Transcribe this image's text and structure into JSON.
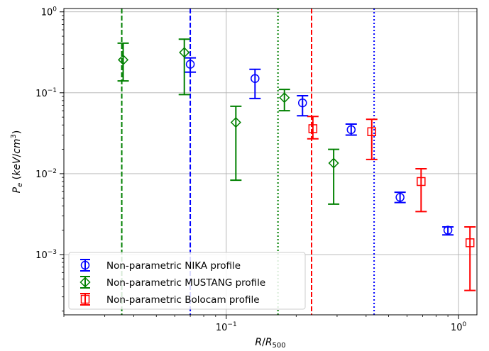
{
  "chart_data": {
    "type": "scatter",
    "title": "",
    "xlabel": "R/R500",
    "ylabel": "Pe (keV/cm3)",
    "xscale": "log",
    "yscale": "log",
    "xlim": [
      0.02,
      1.2
    ],
    "ylim": [
      0.00018,
      1.1
    ],
    "grid": true,
    "legend_position": "lower-left",
    "x_tick_labels": [
      {
        "value": 0.1,
        "base": "10",
        "exp": "−1"
      },
      {
        "value": 1,
        "base": "10",
        "exp": "0"
      }
    ],
    "y_tick_labels": [
      {
        "value": 0.001,
        "base": "10",
        "exp": "−3"
      },
      {
        "value": 0.01,
        "base": "10",
        "exp": "−2"
      },
      {
        "value": 0.1,
        "base": "10",
        "exp": "−1"
      },
      {
        "value": 1,
        "base": "10",
        "exp": "0"
      }
    ],
    "series": [
      {
        "name": "Non-parametric NIKA profile",
        "color": "#0000ff",
        "marker": "circle",
        "points": [
          {
            "x": 0.07,
            "y": 0.225,
            "ylo": 0.18,
            "yhi": 0.27
          },
          {
            "x": 0.133,
            "y": 0.15,
            "ylo": 0.085,
            "yhi": 0.195
          },
          {
            "x": 0.213,
            "y": 0.075,
            "ylo": 0.052,
            "yhi": 0.092
          },
          {
            "x": 0.345,
            "y": 0.035,
            "ylo": 0.03,
            "yhi": 0.041
          },
          {
            "x": 0.56,
            "y": 0.0051,
            "ylo": 0.0044,
            "yhi": 0.0059
          },
          {
            "x": 0.9,
            "y": 0.002,
            "ylo": 0.00175,
            "yhi": 0.0022
          }
        ]
      },
      {
        "name": "Non-parametric MUSTANG profile",
        "color": "#008000",
        "marker": "diamond",
        "points": [
          {
            "x": 0.036,
            "y": 0.255,
            "ylo": 0.14,
            "yhi": 0.41
          },
          {
            "x": 0.066,
            "y": 0.315,
            "ylo": 0.095,
            "yhi": 0.46
          },
          {
            "x": 0.11,
            "y": 0.043,
            "ylo": 0.0083,
            "yhi": 0.068
          },
          {
            "x": 0.178,
            "y": 0.087,
            "ylo": 0.06,
            "yhi": 0.11
          },
          {
            "x": 0.29,
            "y": 0.0135,
            "ylo": 0.0042,
            "yhi": 0.02
          }
        ]
      },
      {
        "name": "Non-parametric Bolocam profile",
        "color": "#ff0000",
        "marker": "square",
        "points": [
          {
            "x": 0.236,
            "y": 0.036,
            "ylo": 0.027,
            "yhi": 0.051
          },
          {
            "x": 0.423,
            "y": 0.033,
            "ylo": 0.015,
            "yhi": 0.047
          },
          {
            "x": 0.69,
            "y": 0.008,
            "ylo": 0.0034,
            "yhi": 0.0115
          },
          {
            "x": 1.12,
            "y": 0.0014,
            "ylo": 0.00036,
            "yhi": 0.0022
          }
        ]
      }
    ],
    "vlines": [
      {
        "x": 0.0355,
        "color": "#008000",
        "style": "dashed"
      },
      {
        "x": 0.07,
        "color": "#0000ff",
        "style": "dashed"
      },
      {
        "x": 0.167,
        "color": "#008000",
        "style": "dotted"
      },
      {
        "x": 0.233,
        "color": "#ff0000",
        "style": "dashed"
      },
      {
        "x": 0.433,
        "color": "#0000ff",
        "style": "dotted"
      }
    ]
  }
}
